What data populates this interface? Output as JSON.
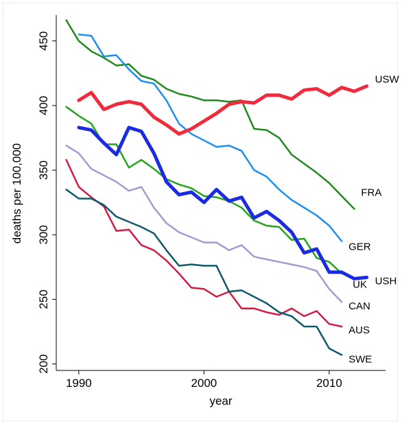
{
  "chart_data": {
    "type": "line",
    "xlabel": "year",
    "ylabel": "deaths per 100,000",
    "xlim": [
      1988.2,
      2014.5
    ],
    "ylim": [
      195,
      470
    ],
    "x_ticks": [
      1990,
      2000,
      2010
    ],
    "y_ticks": [
      200,
      250,
      300,
      350,
      400,
      450
    ],
    "grid": false,
    "legend": "none (series labeled at line ends)",
    "series": [
      {
        "name": "USW",
        "color": "#ef2b3c",
        "width": 5,
        "x": [
          1990,
          1991,
          1992,
          1993,
          1994,
          1995,
          1996,
          1997,
          1998,
          1999,
          2000,
          2001,
          2002,
          2003,
          2004,
          2005,
          2006,
          2007,
          2008,
          2009,
          2010,
          2011,
          2012,
          2013
        ],
        "y": [
          404,
          410,
          397,
          401,
          403,
          401,
          391,
          385,
          378,
          382,
          388,
          394,
          401,
          403,
          402,
          408,
          408,
          405,
          412,
          413,
          408,
          414,
          411,
          415
        ]
      },
      {
        "name": "FRA",
        "color": "#1e8a1e",
        "width": 2.5,
        "x": [
          1989,
          1990,
          1991,
          1992,
          1993,
          1994,
          1995,
          1996,
          1997,
          1998,
          1999,
          2000,
          2001,
          2002,
          2003,
          2004,
          2005,
          2006,
          2007,
          2008,
          2009,
          2010,
          2011,
          2012
        ],
        "y": [
          466,
          450,
          442,
          437,
          431,
          432,
          423,
          420,
          413,
          409,
          407,
          404,
          404,
          403,
          404,
          382,
          381,
          375,
          362,
          355,
          348,
          340,
          330,
          320
        ]
      },
      {
        "name": "GER",
        "color": "#1d8ef0",
        "width": 2.5,
        "x": [
          1990,
          1991,
          1992,
          1993,
          1994,
          1995,
          1996,
          1997,
          1998,
          1999,
          2000,
          2001,
          2002,
          2003,
          2004,
          2005,
          2006,
          2007,
          2008,
          2009,
          2010,
          2011
        ],
        "y": [
          455,
          454,
          438,
          439,
          428,
          419,
          417,
          404,
          386,
          378,
          373,
          368,
          369,
          365,
          350,
          345,
          335,
          327,
          321,
          315,
          307,
          295
        ]
      },
      {
        "name": "USH",
        "color": "#1a2be0",
        "width": 5,
        "x": [
          1990,
          1991,
          1992,
          1993,
          1994,
          1995,
          1996,
          1997,
          1998,
          1999,
          2000,
          2001,
          2002,
          2003,
          2004,
          2005,
          2006,
          2007,
          2008,
          2009,
          2010,
          2011,
          2012,
          2013
        ],
        "y": [
          383,
          381,
          371,
          362,
          383,
          380,
          363,
          341,
          331,
          333,
          325,
          335,
          326,
          329,
          313,
          318,
          311,
          302,
          286,
          289,
          271,
          271,
          266,
          267
        ]
      },
      {
        "name": "UK",
        "color": "#22a51c",
        "width": 2.5,
        "x": [
          1989,
          1990,
          1991,
          1992,
          1993,
          1994,
          1995,
          1996,
          1997,
          1998,
          1999,
          2000,
          2001,
          2002,
          2003,
          2004,
          2005,
          2006,
          2007,
          2008,
          2009,
          2010,
          2011
        ],
        "y": [
          399,
          392,
          386,
          370,
          370,
          352,
          358,
          351,
          343,
          339,
          336,
          330,
          329,
          326,
          321,
          311,
          307,
          306,
          296,
          297,
          282,
          279,
          270
        ]
      },
      {
        "name": "CAN",
        "color": "#a49bd1",
        "width": 2.5,
        "x": [
          1989,
          1990,
          1991,
          1992,
          1993,
          1994,
          1995,
          1996,
          1997,
          1998,
          1999,
          2000,
          2001,
          2002,
          2003,
          2004,
          2005,
          2006,
          2007,
          2008,
          2009,
          2010,
          2011
        ],
        "y": [
          369,
          363,
          351,
          346,
          341,
          334,
          337,
          321,
          309,
          302,
          298,
          294,
          294,
          288,
          292,
          283,
          281,
          279,
          277,
          275,
          272,
          258,
          248
        ]
      },
      {
        "name": "AUS",
        "color": "#d21b42",
        "width": 2.5,
        "x": [
          1989,
          1990,
          1991,
          1992,
          1993,
          1994,
          1995,
          1996,
          1997,
          1998,
          1999,
          2000,
          2001,
          2002,
          2003,
          2004,
          2005,
          2006,
          2007,
          2008,
          2009,
          2010,
          2011
        ],
        "y": [
          358,
          337,
          329,
          322,
          303,
          304,
          292,
          288,
          280,
          270,
          259,
          258,
          252,
          256,
          243,
          243,
          240,
          238,
          243,
          237,
          241,
          231,
          229
        ]
      },
      {
        "name": "SWE",
        "color": "#0f5a6a",
        "width": 2.5,
        "x": [
          1989,
          1990,
          1991,
          1992,
          1993,
          1994,
          1995,
          1996,
          1997,
          1998,
          1999,
          2000,
          2001,
          2002,
          2003,
          2004,
          2005,
          2006,
          2007,
          2008,
          2009,
          2010,
          2011
        ],
        "y": [
          335,
          328,
          328,
          323,
          314,
          310,
          306,
          301,
          288,
          276,
          277,
          276,
          276,
          256,
          257,
          252,
          247,
          240,
          237,
          229,
          229,
          212,
          207
        ]
      }
    ]
  }
}
